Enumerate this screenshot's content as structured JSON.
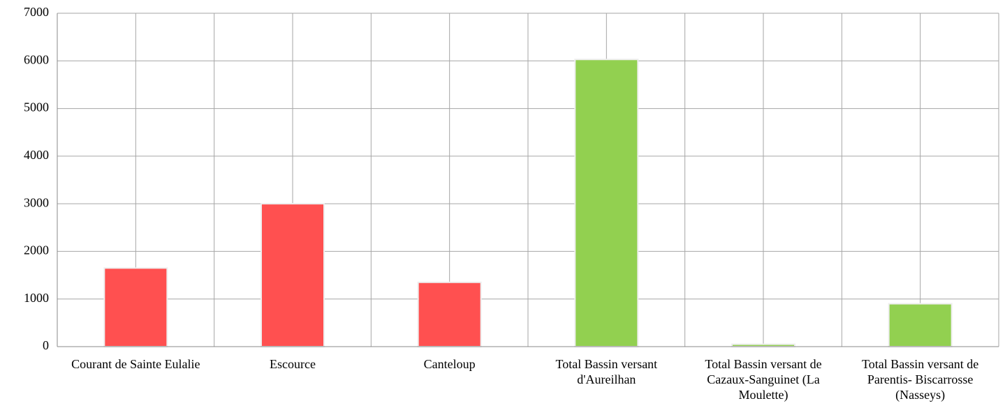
{
  "chart_data": {
    "type": "bar",
    "categories": [
      "Courant de Sainte Eulalie",
      "Escource",
      "Canteloup",
      "Total Bassin versant d'Aureilhan",
      "Total Bassin versant de Cazaux-Sanguinet (La Moulette)",
      "Total Bassin versant de Parentis- Biscarrosse (Nasseys)"
    ],
    "values": [
      1650,
      3000,
      1350,
      6030,
      50,
      900
    ],
    "colors": [
      "#ff5050",
      "#ff5050",
      "#ff5050",
      "#92d050",
      "#92d050",
      "#92d050"
    ],
    "ylim": [
      0,
      7000
    ],
    "yticks": [
      0,
      1000,
      2000,
      3000,
      4000,
      5000,
      6000,
      7000
    ],
    "grid": true
  }
}
